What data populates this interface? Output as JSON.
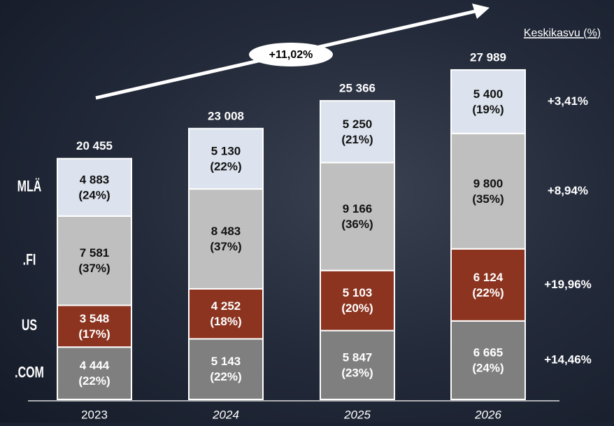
{
  "chart_data": {
    "type": "stacked-bar",
    "categories": [
      "2023",
      "2024",
      "2025",
      "2026"
    ],
    "series": [
      {
        "name": ".COM",
        "color": "#7f7f7f",
        "text_color": "#ffffff",
        "values": [
          4444,
          5143,
          5847,
          6665
        ],
        "value_labels": [
          "4 444",
          "5 143",
          "5 847",
          "6 665"
        ],
        "share_labels": [
          "(22%)",
          "(22%)",
          "(23%)",
          "(24%)"
        ],
        "growth": "+14,46%"
      },
      {
        "name": "US",
        "color": "#8c3420",
        "text_color": "#ffffff",
        "values": [
          3548,
          4252,
          5103,
          6124
        ],
        "value_labels": [
          "3 548",
          "4 252",
          "5 103",
          "6 124"
        ],
        "share_labels": [
          "(17%)",
          "(18%)",
          "(20%)",
          "(22%)"
        ],
        "growth": "+19,96%"
      },
      {
        "name": ".FI",
        "color": "#bfbfbf",
        "text_color": "#111111",
        "values": [
          7581,
          8483,
          9166,
          9800
        ],
        "value_labels": [
          "7 581",
          "8 483",
          "9 166",
          "9 800"
        ],
        "share_labels": [
          "(37%)",
          "(37%)",
          "(36%)",
          "(35%)"
        ],
        "growth": "+8,94%"
      },
      {
        "name": "MLÄ",
        "color": "#dce3ee",
        "text_color": "#111111",
        "values": [
          4883,
          5130,
          5250,
          5400
        ],
        "value_labels": [
          "4 883",
          "5 130",
          "5 250",
          "5 400"
        ],
        "share_labels": [
          "(24%)",
          "(22%)",
          "(21%)",
          "(19%)"
        ],
        "growth": "+3,41%"
      }
    ],
    "totals": [
      20455,
      23008,
      25366,
      27989
    ],
    "total_labels": [
      "20 455",
      "23 008",
      "25 366",
      "27 989"
    ],
    "growth_title": "Keskikasvu (%)",
    "trend_label": "+11,02%"
  }
}
